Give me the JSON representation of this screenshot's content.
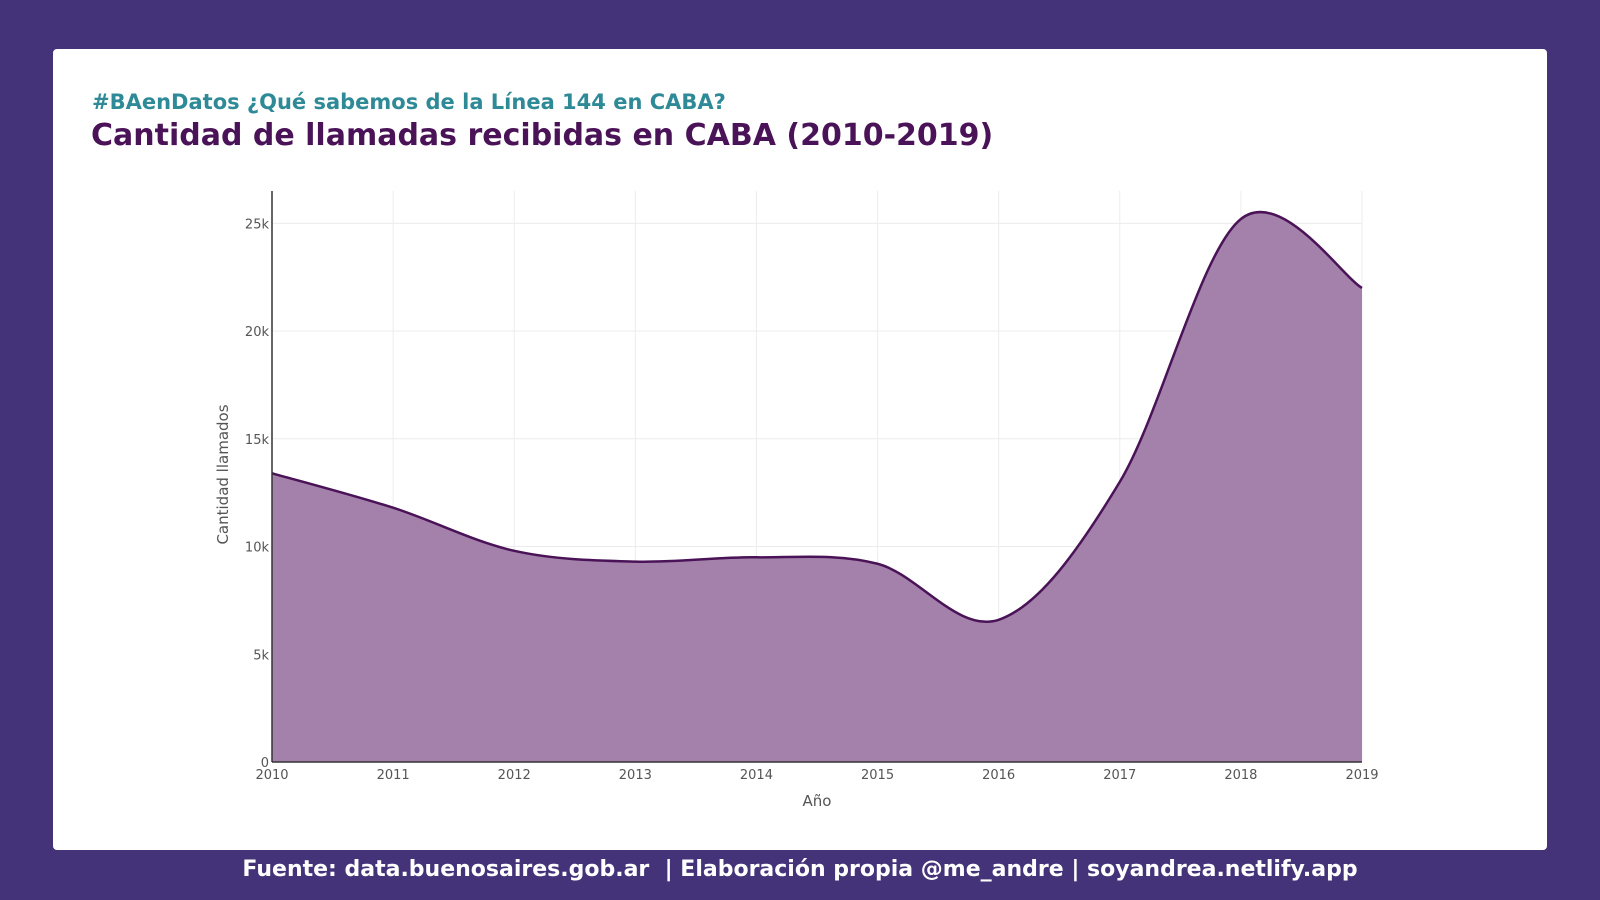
{
  "header": {
    "subtitle": "#BAenDatos ¿Qué sabemos de la Línea 144 en CABA?",
    "title": "Cantidad de llamadas recibidas en CABA (2010-2019)"
  },
  "footer": {
    "text": "Fuente: data.buenosaires.gob.ar  | Elaboración propia @me_andre | soyandrea.netlify.app"
  },
  "colors": {
    "background": "#45337a",
    "area_fill": "#a381aa",
    "line": "#4a1357",
    "subtitle": "#2e8a96",
    "title": "#4a1357"
  },
  "chart_data": {
    "type": "area",
    "xlabel": "Año",
    "ylabel": "Cantidad llamados",
    "x": [
      2010,
      2011,
      2012,
      2013,
      2014,
      2015,
      2016,
      2017,
      2018,
      2019
    ],
    "series": [
      {
        "values": [
          13400,
          11800,
          9800,
          9300,
          9500,
          9200,
          6600,
          13000,
          25200,
          22000
        ]
      }
    ],
    "xlim": [
      2010,
      2019
    ],
    "ylim": [
      0,
      26500
    ],
    "yticks": [
      0,
      5000,
      10000,
      15000,
      20000,
      25000
    ],
    "ytick_labels": [
      "0",
      "5k",
      "10k",
      "15k",
      "20k",
      "25k"
    ],
    "xtick_labels": [
      "2010",
      "2011",
      "2012",
      "2013",
      "2014",
      "2015",
      "2016",
      "2017",
      "2018",
      "2019"
    ],
    "grid": true,
    "smooth": true
  }
}
